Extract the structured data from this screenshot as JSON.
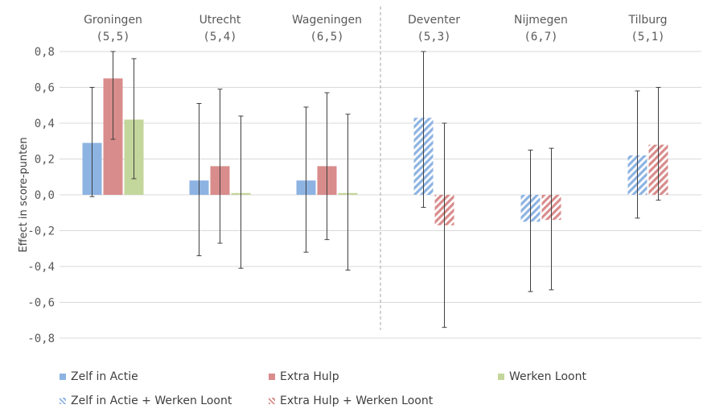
{
  "chart_data": {
    "type": "bar",
    "ylabel": "Effect in score-punten",
    "ylim": [
      -0.8,
      0.8
    ],
    "yticks": [
      0.8,
      0.6,
      0.4,
      0.2,
      0.0,
      -0.2,
      -0.4,
      -0.6,
      -0.8
    ],
    "ytick_labels": [
      "0,8",
      "0,6",
      "0,4",
      "0,2",
      "0,0",
      "-0,2",
      "-0,4",
      "-0,6",
      "-0,8"
    ],
    "grid": true,
    "legend_position": "bottom",
    "categories": [
      {
        "name": "Groningen",
        "sub": "(5,5)"
      },
      {
        "name": "Utrecht",
        "sub": "(5,4)"
      },
      {
        "name": "Wageningen",
        "sub": "(6,5)"
      },
      {
        "name": "Deventer",
        "sub": "(5,3)"
      },
      {
        "name": "Nijmegen",
        "sub": "(6,7)"
      },
      {
        "name": "Tilburg",
        "sub": "(5,1)"
      }
    ],
    "separator_after_category": 2,
    "series": [
      {
        "name": "Zelf in Actie",
        "color": "#8db3e2",
        "pattern": "solid",
        "values": [
          0.29,
          0.08,
          0.08,
          null,
          null,
          null
        ],
        "err_low": [
          -0.01,
          -0.34,
          -0.32,
          null,
          null,
          null
        ],
        "err_high": [
          0.6,
          0.51,
          0.49,
          null,
          null,
          null
        ]
      },
      {
        "name": "Extra Hulp",
        "color": "#d98c8c",
        "pattern": "solid",
        "values": [
          0.65,
          0.16,
          0.16,
          null,
          null,
          null
        ],
        "err_low": [
          0.31,
          -0.27,
          -0.25,
          null,
          null,
          null
        ],
        "err_high": [
          0.8,
          0.59,
          0.57,
          null,
          null,
          null
        ]
      },
      {
        "name": "Werken Loont",
        "color": "#c3d69b",
        "pattern": "solid",
        "values": [
          0.42,
          0.01,
          0.01,
          null,
          null,
          null
        ],
        "err_low": [
          0.09,
          -0.41,
          -0.42,
          null,
          null,
          null
        ],
        "err_high": [
          0.76,
          0.44,
          0.45,
          null,
          null,
          null
        ]
      },
      {
        "name": "Zelf in Actie + Werken Loont",
        "color": "#8db3e2",
        "pattern": "hatched",
        "values": [
          null,
          null,
          null,
          0.43,
          -0.15,
          0.22
        ],
        "err_low": [
          null,
          null,
          null,
          -0.07,
          -0.54,
          -0.13
        ],
        "err_high": [
          null,
          null,
          null,
          0.8,
          0.25,
          0.58
        ]
      },
      {
        "name": "Extra Hulp + Werken Loont",
        "color": "#d98c8c",
        "pattern": "hatched",
        "values": [
          null,
          null,
          null,
          -0.17,
          -0.14,
          0.28
        ],
        "err_low": [
          null,
          null,
          null,
          -0.74,
          -0.53,
          -0.03
        ],
        "err_high": [
          null,
          null,
          null,
          0.4,
          0.26,
          0.6
        ]
      }
    ]
  },
  "colors": {
    "grid": "#d9d9d9",
    "axis_text": "#595959",
    "separator": "#a6a6a6",
    "error_bar": "#404040"
  }
}
